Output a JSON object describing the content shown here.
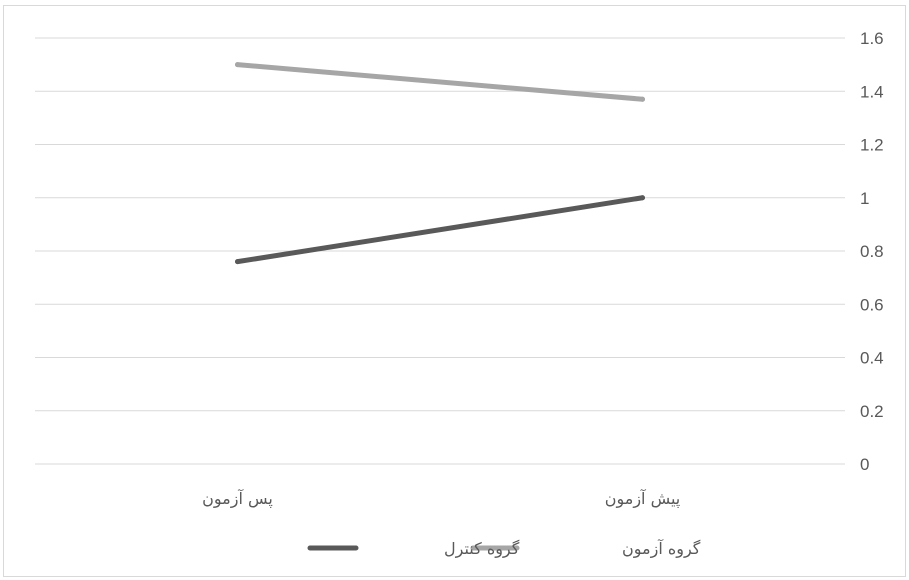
{
  "chart_data": {
    "type": "line",
    "categories": [
      "پس آزمون",
      "پیش آزمون"
    ],
    "series": [
      {
        "name": "گروه آزمون",
        "values": [
          1.5,
          1.37
        ],
        "color": "#a6a6a6"
      },
      {
        "name": "گروه کنترل",
        "values": [
          0.76,
          1.0
        ],
        "color": "#595959"
      }
    ],
    "ylim": [
      0,
      1.6
    ],
    "yticks": [
      "0",
      "0.2",
      "0.4",
      "0.6",
      "0.8",
      "1",
      "1.2",
      "1.4",
      "1.6"
    ],
    "y_axis_side": "right",
    "grid": true,
    "legend_position": "bottom"
  }
}
